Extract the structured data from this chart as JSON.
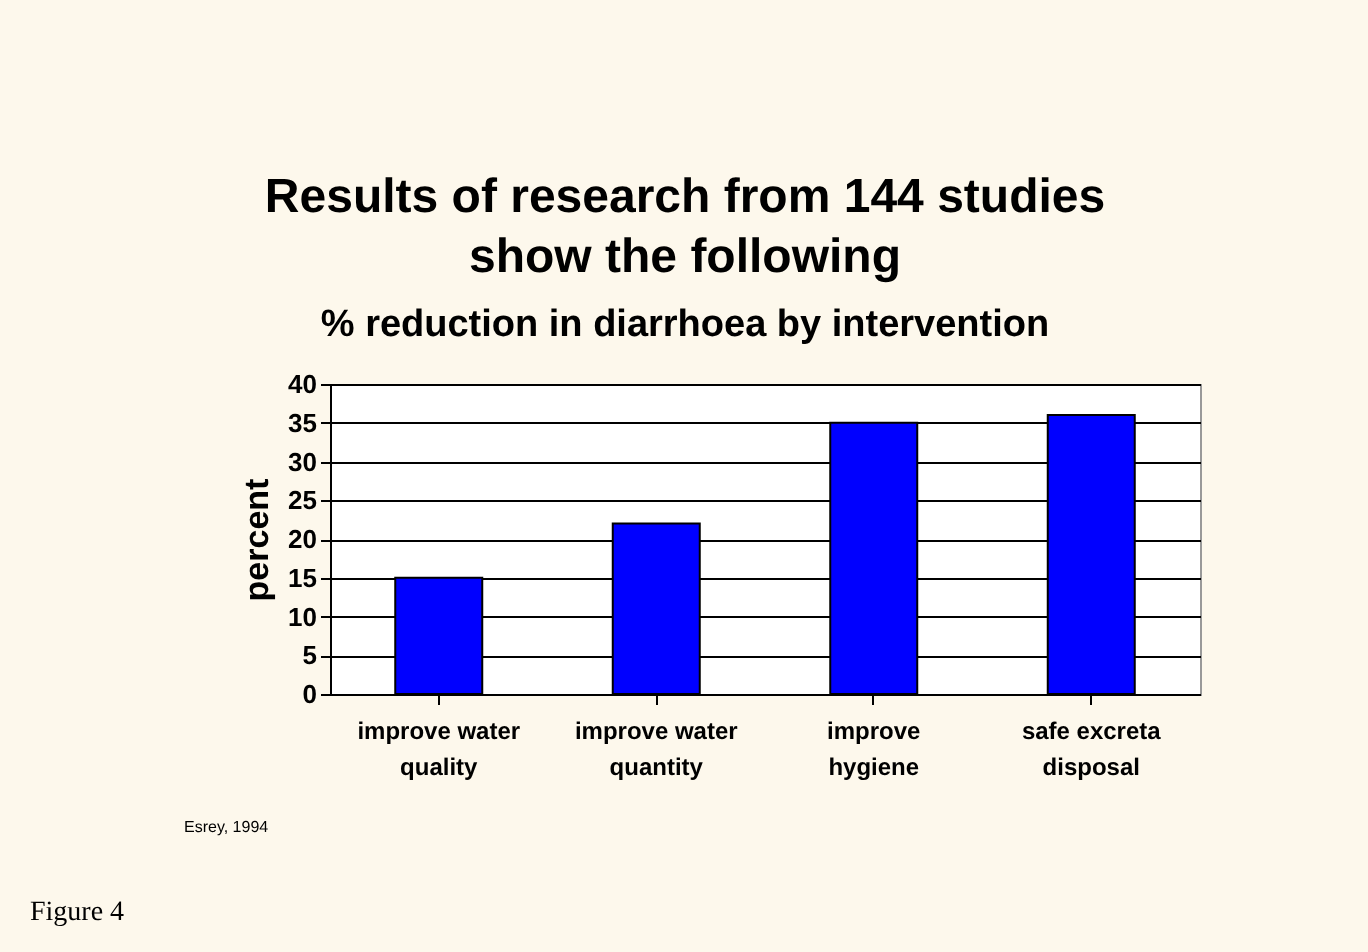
{
  "chart_data": {
    "type": "bar",
    "title": "Results of research from 144 studies show the following",
    "subtitle": "% reduction in diarrhoea by intervention",
    "ylabel": "percent",
    "categories": [
      "improve water quality",
      "improve water quantity",
      "improve hygiene",
      "safe excreta disposal"
    ],
    "values": [
      15,
      22,
      35,
      36
    ],
    "color": "#0000ff",
    "ylim": [
      0,
      40
    ],
    "yticks": [
      0,
      5,
      10,
      15,
      20,
      25,
      30,
      35,
      40
    ],
    "grid": "y",
    "annotations": [
      "Esrey, 1994",
      "Figure 4"
    ]
  }
}
